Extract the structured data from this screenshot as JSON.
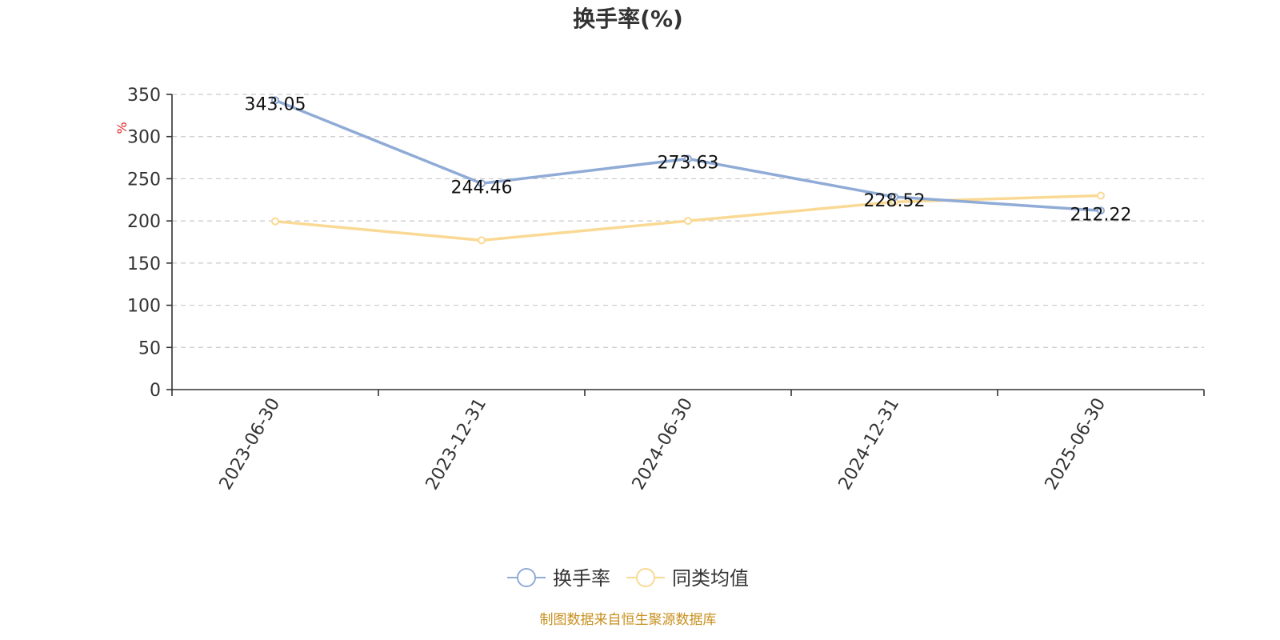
{
  "chart_data": {
    "type": "line",
    "title": "换手率(%)",
    "ylabel": "%",
    "xlabel": "",
    "ylim": [
      0,
      350
    ],
    "yticks": [
      0,
      50,
      100,
      150,
      200,
      250,
      300,
      350
    ],
    "grid": true,
    "legend_position": "bottom",
    "categories": [
      "2023-06-30",
      "2023-12-31",
      "2024-06-30",
      "2024-12-31",
      "2025-06-30"
    ],
    "series": [
      {
        "name": "换手率",
        "color": "#8fabd6",
        "values": [
          343.05,
          244.46,
          273.63,
          228.52,
          212.22
        ],
        "labels": [
          "343.05",
          "244.46",
          "273.63",
          "228.52",
          "212.22"
        ]
      },
      {
        "name": "同类均值",
        "color": "#fad994",
        "values": [
          199.5,
          177.0,
          200.0,
          222.5,
          230.0
        ]
      }
    ],
    "source": "制图数据来自恒生聚源数据库"
  }
}
